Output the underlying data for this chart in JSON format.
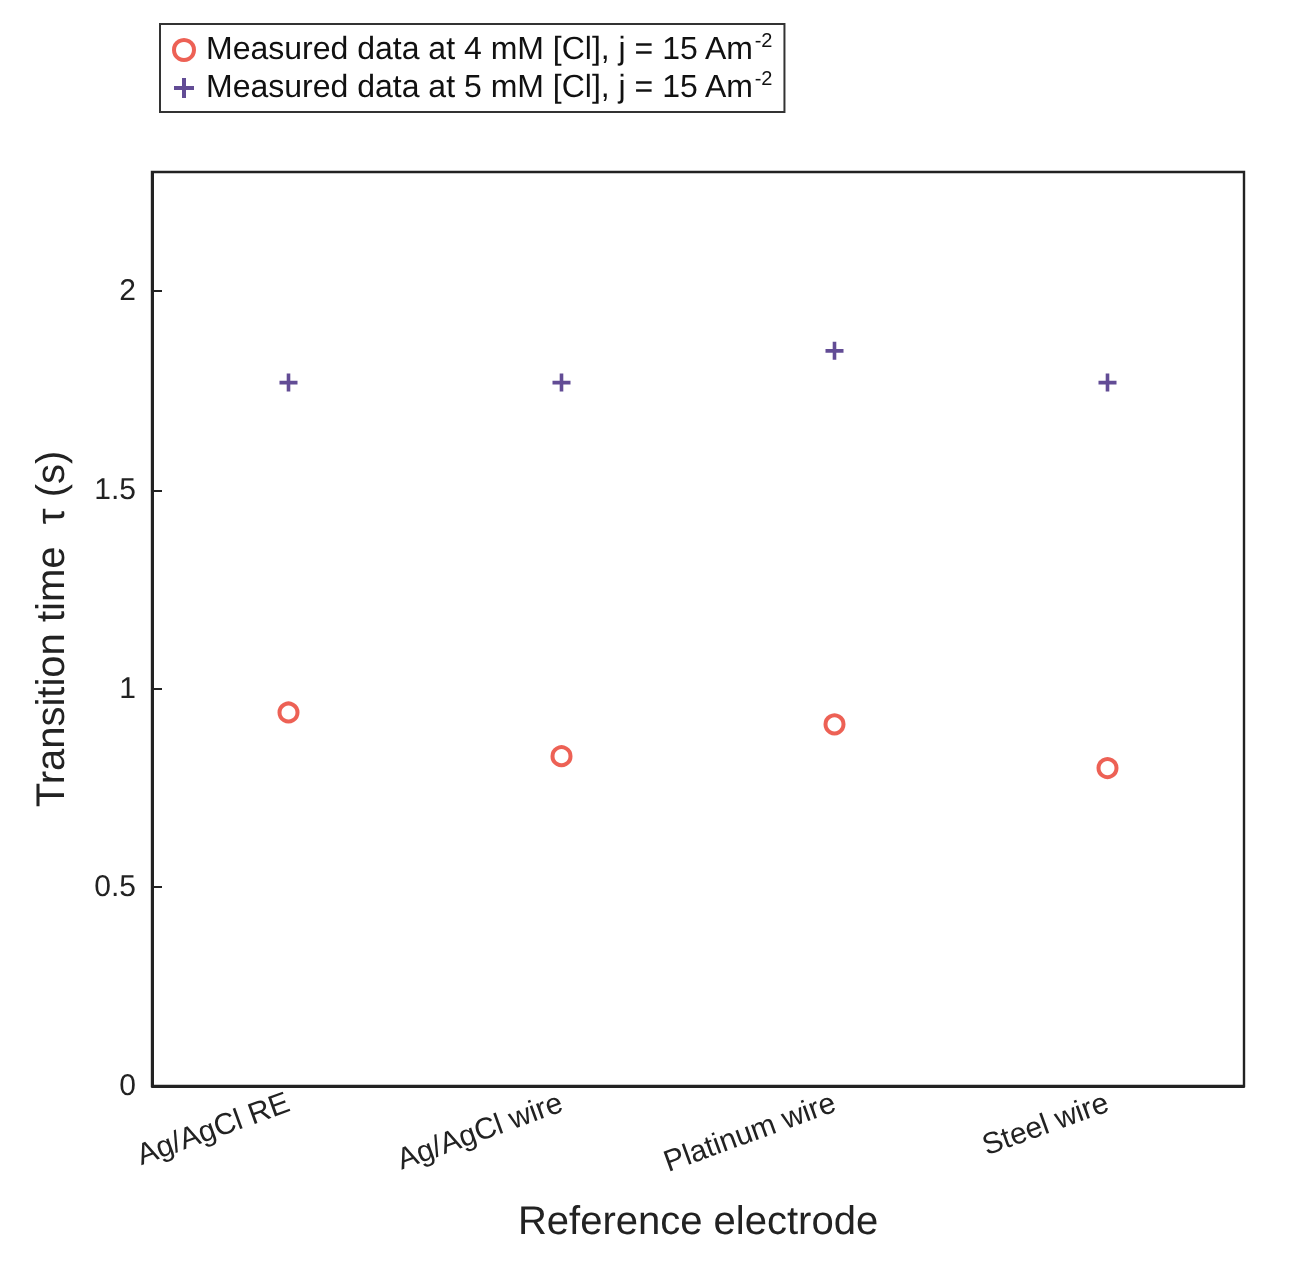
{
  "chart_data": {
    "type": "scatter",
    "xlabel": "Reference electrode",
    "ylabel": "Transition time  τ (s)",
    "categories": [
      "Ag/AgCl RE",
      "Ag/AgCl wire",
      "Platinum wire",
      "Steel wire"
    ],
    "series": [
      {
        "name": "Measured data at 4 mM [Cl], j = 15 Am$^{-2}$",
        "color": "#e8392a",
        "marker": "circle",
        "values": [
          0.94,
          0.83,
          0.91,
          0.8
        ]
      },
      {
        "name": "Measured data at 5 mM [Cl], j = 15 Am$^{-2}$",
        "color": "#3b1f7a",
        "marker": "cross",
        "values": [
          1.77,
          1.77,
          1.85,
          1.77
        ]
      }
    ],
    "ylim": [
      0,
      2.3
    ],
    "yticks": [
      0,
      0.5,
      1,
      1.5,
      2
    ],
    "grid": false,
    "legend": "top left"
  }
}
